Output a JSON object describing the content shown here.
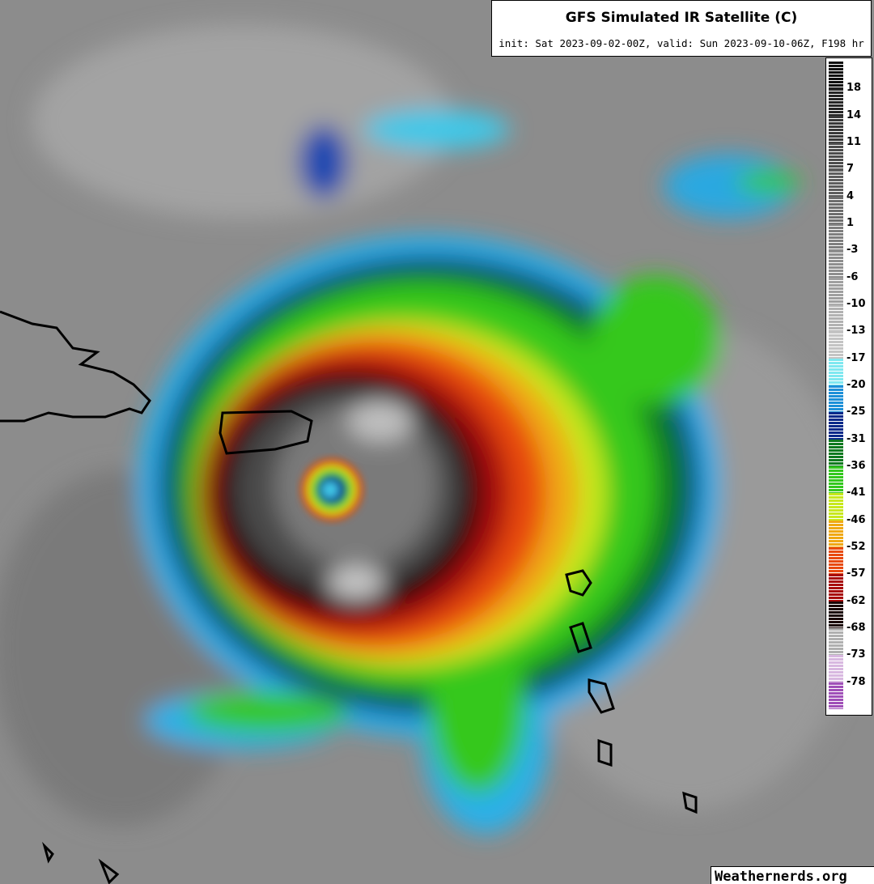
{
  "header": {
    "title": "GFS Simulated IR Satellite (C)",
    "subtitle": "init: Sat 2023-09-02-00Z, valid: Sun 2023-09-10-06Z, F198 hr"
  },
  "colorbar": {
    "labels": [
      18,
      14,
      11,
      7,
      4,
      1,
      -3,
      -6,
      -10,
      -13,
      -17,
      -20,
      -25,
      -31,
      -36,
      -41,
      -46,
      -52,
      -57,
      -62,
      -68,
      -73,
      -78
    ],
    "colors": [
      "#111111",
      "#262626",
      "#3a3a3a",
      "#4d4d4d",
      "#5e5e5e",
      "#6e6e6e",
      "#7f7f7f",
      "#8f8f8f",
      "#a0a0a0",
      "#b2b2b2",
      "#c4c4c4",
      "#7fe8f0",
      "#1e90d8",
      "#0a2a8a",
      "#107a20",
      "#34c81e",
      "#c8e81e",
      "#f0a814",
      "#e84a10",
      "#a80c0c",
      "#1a0606",
      "#b0b0b0",
      "#d8b8e0",
      "#a050b8"
    ]
  },
  "watermark": "Weathernerds.org"
}
